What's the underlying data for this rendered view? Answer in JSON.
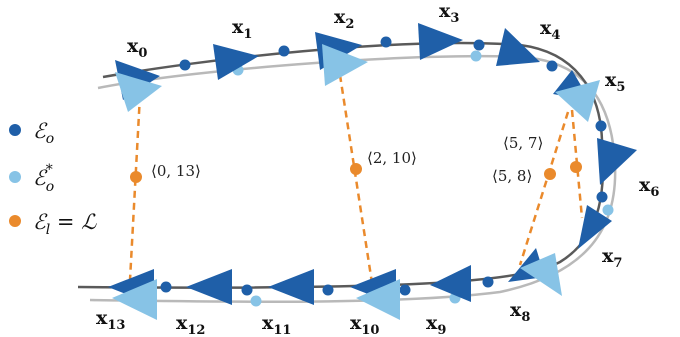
{
  "colors": {
    "odometry_dark": "#1f5fa8",
    "odometry_light": "#87c3e6",
    "loop_closure": "#ea8a2c",
    "trajectory_dark": "#5a5a5a",
    "trajectory_light": "#b9b9b9"
  },
  "nodes": {
    "x0": {
      "base": "x",
      "sub": "0"
    },
    "x1": {
      "base": "x",
      "sub": "1"
    },
    "x2": {
      "base": "x",
      "sub": "2"
    },
    "x3": {
      "base": "x",
      "sub": "3"
    },
    "x4": {
      "base": "x",
      "sub": "4"
    },
    "x5": {
      "base": "x",
      "sub": "5"
    },
    "x6": {
      "base": "x",
      "sub": "6"
    },
    "x7": {
      "base": "x",
      "sub": "7"
    },
    "x8": {
      "base": "x",
      "sub": "8"
    },
    "x9": {
      "base": "x",
      "sub": "9"
    },
    "x10": {
      "base": "x",
      "sub": "10"
    },
    "x11": {
      "base": "x",
      "sub": "11"
    },
    "x12": {
      "base": "x",
      "sub": "12"
    },
    "x13": {
      "base": "x",
      "sub": "13"
    }
  },
  "loop_closures": [
    {
      "label": "⟨0, 13⟩"
    },
    {
      "label": "⟨2, 10⟩"
    },
    {
      "label": "⟨5, 7⟩"
    },
    {
      "label": "⟨5, 8⟩"
    }
  ],
  "legend": [
    {
      "symbol": "ℰ",
      "sub": "o",
      "sup": "",
      "suffix": "",
      "color_key": "odometry_dark"
    },
    {
      "symbol": "ℰ",
      "sub": "o",
      "sup": "*",
      "suffix": "",
      "color_key": "odometry_light"
    },
    {
      "symbol": "ℰ",
      "sub": "l",
      "sup": "",
      "suffix": " = ℒ",
      "color_key": "loop_closure"
    }
  ]
}
